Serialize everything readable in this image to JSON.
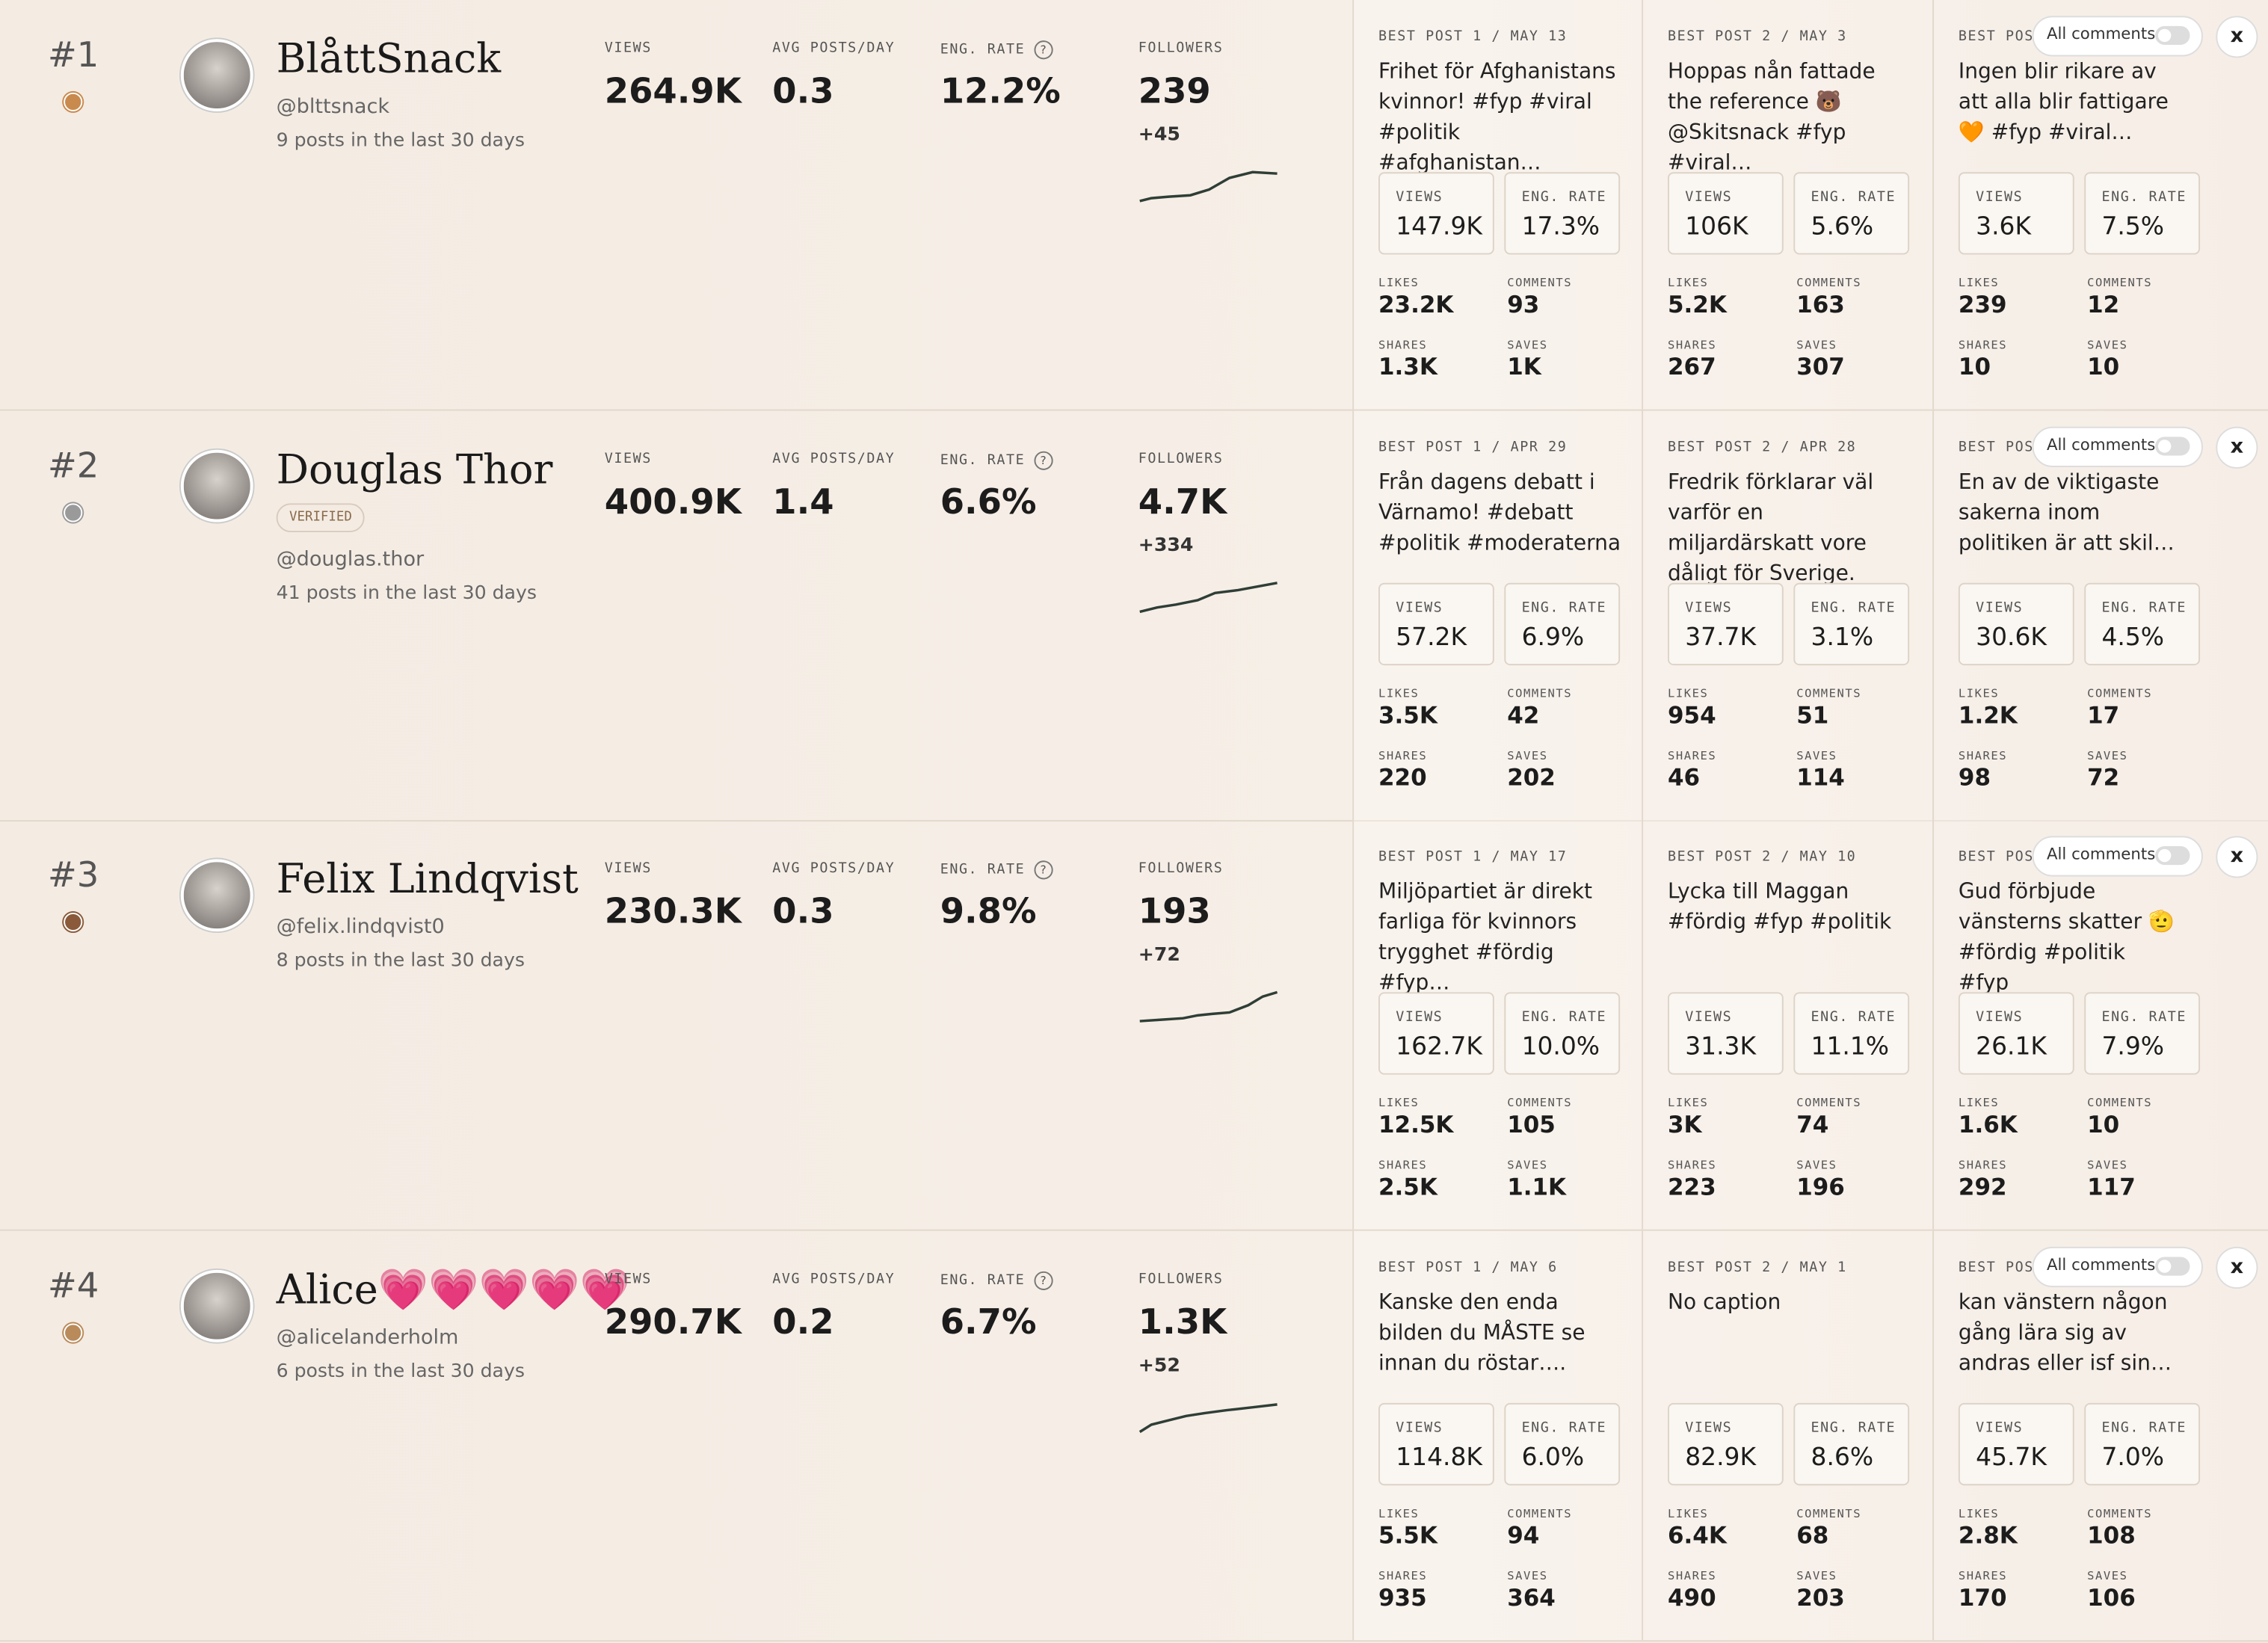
{
  "labels": {
    "views": "VIEWS",
    "avg_posts": "AVG POSTS/DAY",
    "eng_rate": "ENG. RATE",
    "help": "?",
    "followers": "FOLLOWERS",
    "likes": "LIKES",
    "comments": "COMMENTS",
    "shares": "SHARES",
    "saves": "SAVES",
    "all_comments": "All comments",
    "close": "x",
    "verified": "VERIFIED"
  },
  "rows": [
    {
      "rank": "#1",
      "name": "BlåttSnack",
      "verified": false,
      "handle": "@blttsnack",
      "posts_text": "9 posts in the last 30 days",
      "views": "264.9K",
      "avg_posts_day": "0.3",
      "eng_rate": "12.2%",
      "followers": "239",
      "followers_change": "+45",
      "posts": [
        {
          "label": "BEST POST 1 / MAY 13",
          "caption": "Frihet för Afghanistans kvinnor! #fyp #viral #politik #afghanistan…",
          "views": "147.9K",
          "eng_rate": "17.3%",
          "likes": "23.2K",
          "comments": "93",
          "shares": "1.3K",
          "saves": "1K"
        },
        {
          "label": "BEST POST 2 / MAY 3",
          "caption": "Hoppas nån fattade the reference 🐻 @Skitsnack #fyp #viral…",
          "views": "106K",
          "eng_rate": "5.6%",
          "likes": "5.2K",
          "comments": "163",
          "shares": "267",
          "saves": "307"
        },
        {
          "label": "BEST POS",
          "caption": "Ingen blir rikare av att alla blir fattigare 🧡 #fyp #viral…",
          "views": "3.6K",
          "eng_rate": "7.5%",
          "likes": "239",
          "comments": "12",
          "shares": "10",
          "saves": "10"
        }
      ]
    },
    {
      "rank": "#2",
      "name": "Douglas Thor",
      "verified": true,
      "handle": "@douglas.thor",
      "posts_text": "41 posts in the last 30 days",
      "views": "400.9K",
      "avg_posts_day": "1.4",
      "eng_rate": "6.6%",
      "followers": "4.7K",
      "followers_change": "+334",
      "posts": [
        {
          "label": "BEST POST 1 / APR 29",
          "caption": "Från dagens debatt i Värnamo! #debatt #politik #moderaterna",
          "views": "57.2K",
          "eng_rate": "6.9%",
          "likes": "3.5K",
          "comments": "42",
          "shares": "220",
          "saves": "202"
        },
        {
          "label": "BEST POST 2 / APR 28",
          "caption": "Fredrik förklarar väl varför en miljardärskatt vore dåligt för Sverige.",
          "views": "37.7K",
          "eng_rate": "3.1%",
          "likes": "954",
          "comments": "51",
          "shares": "46",
          "saves": "114"
        },
        {
          "label": "BEST POS",
          "caption": "En av de viktigaste sakerna inom politiken är att skil…",
          "views": "30.6K",
          "eng_rate": "4.5%",
          "likes": "1.2K",
          "comments": "17",
          "shares": "98",
          "saves": "72"
        }
      ]
    },
    {
      "rank": "#3",
      "name": "Felix Lindqvist",
      "verified": false,
      "handle": "@felix.lindqvist0",
      "posts_text": "8 posts in the last 30 days",
      "views": "230.3K",
      "avg_posts_day": "0.3",
      "eng_rate": "9.8%",
      "followers": "193",
      "followers_change": "+72",
      "posts": [
        {
          "label": "BEST POST 1 / MAY 17",
          "caption": "Miljöpartiet är direkt farliga för kvinnors trygghet #fördig #fyp…",
          "views": "162.7K",
          "eng_rate": "10.0%",
          "likes": "12.5K",
          "comments": "105",
          "shares": "2.5K",
          "saves": "1.1K"
        },
        {
          "label": "BEST POST 2 / MAY 10",
          "caption": "Lycka till Maggan #fördig #fyp #politik",
          "views": "31.3K",
          "eng_rate": "11.1%",
          "likes": "3K",
          "comments": "74",
          "shares": "223",
          "saves": "196"
        },
        {
          "label": "BEST POS",
          "caption": "Gud förbjude vänsterns skatter 🫡 #fördig #politik #fyp",
          "views": "26.1K",
          "eng_rate": "7.9%",
          "likes": "1.6K",
          "comments": "10",
          "shares": "292",
          "saves": "117"
        }
      ]
    },
    {
      "rank": "#4",
      "name": "Alice💗💗💗💗💗",
      "verified": false,
      "handle": "@alicelanderholm",
      "posts_text": "6 posts in the last 30 days",
      "views": "290.7K",
      "avg_posts_day": "0.2",
      "eng_rate": "6.7%",
      "followers": "1.3K",
      "followers_change": "+52",
      "posts": [
        {
          "label": "BEST POST 1 / MAY 6",
          "caption": "Kanske den enda bilden du MÅSTE se innan du röstar….",
          "views": "114.8K",
          "eng_rate": "6.0%",
          "likes": "5.5K",
          "comments": "94",
          "shares": "935",
          "saves": "364"
        },
        {
          "label": "BEST POST 2 / MAY 1",
          "caption": "No caption",
          "views": "82.9K",
          "eng_rate": "8.6%",
          "likes": "6.4K",
          "comments": "68",
          "shares": "490",
          "saves": "203"
        },
        {
          "label": "BEST POS",
          "caption": "kan vänstern någon gång lära sig av andras eller isf sin…",
          "views": "45.7K",
          "eng_rate": "7.0%",
          "likes": "2.8K",
          "comments": "108",
          "shares": "170",
          "saves": "106"
        }
      ]
    }
  ]
}
